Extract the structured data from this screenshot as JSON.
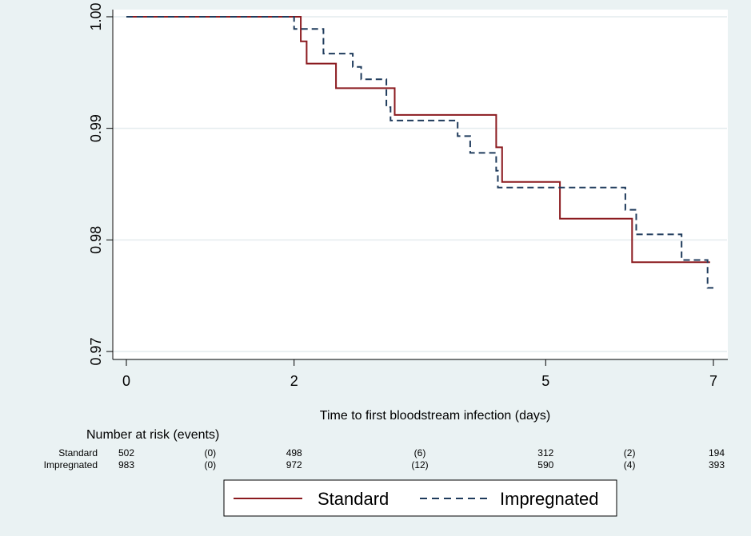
{
  "chart_data": {
    "type": "line",
    "subtype": "kaplan-meier-step",
    "xlabel": "Time to first bloodstream infection (days)",
    "ylabel": "",
    "xlim": [
      0,
      7
    ],
    "ylim": [
      0.9695,
      1.0005
    ],
    "x_ticks": [
      0,
      2,
      5,
      7
    ],
    "y_ticks": [
      0.97,
      0.98,
      0.99,
      1.0
    ],
    "y_tick_labels": [
      "0.97",
      "0.98",
      "0.99",
      "1.00"
    ],
    "grid": true,
    "legend_position": "bottom",
    "series": [
      {
        "name": "Standard",
        "color": "#8b1a1f",
        "dash": "solid",
        "points": [
          [
            0,
            1.0
          ],
          [
            2.08,
            1.0
          ],
          [
            2.08,
            0.9978
          ],
          [
            2.15,
            0.9978
          ],
          [
            2.15,
            0.9958
          ],
          [
            2.5,
            0.9958
          ],
          [
            2.5,
            0.9936
          ],
          [
            3.2,
            0.9936
          ],
          [
            3.2,
            0.9912
          ],
          [
            4.41,
            0.9912
          ],
          [
            4.41,
            0.9883
          ],
          [
            4.48,
            0.9883
          ],
          [
            4.48,
            0.9852
          ],
          [
            5.17,
            0.9852
          ],
          [
            5.17,
            0.9819
          ],
          [
            6.03,
            0.9819
          ],
          [
            6.03,
            0.978
          ],
          [
            6.96,
            0.978
          ]
        ]
      },
      {
        "name": "Impregnated",
        "color": "#1f3b5c",
        "dash": "dashed",
        "points": [
          [
            0,
            1.0
          ],
          [
            2.0,
            1.0
          ],
          [
            2.0,
            0.9989
          ],
          [
            2.35,
            0.9989
          ],
          [
            2.35,
            0.9967
          ],
          [
            2.7,
            0.9967
          ],
          [
            2.7,
            0.9955
          ],
          [
            2.8,
            0.9955
          ],
          [
            2.8,
            0.9944
          ],
          [
            3.1,
            0.9944
          ],
          [
            3.1,
            0.9919
          ],
          [
            3.15,
            0.9919
          ],
          [
            3.15,
            0.9907
          ],
          [
            3.95,
            0.9907
          ],
          [
            3.95,
            0.9893
          ],
          [
            4.1,
            0.9893
          ],
          [
            4.1,
            0.9878
          ],
          [
            4.41,
            0.9878
          ],
          [
            4.41,
            0.9862
          ],
          [
            4.43,
            0.9862
          ],
          [
            4.43,
            0.9847
          ],
          [
            5.95,
            0.9847
          ],
          [
            5.95,
            0.9827
          ],
          [
            6.08,
            0.9827
          ],
          [
            6.08,
            0.9805
          ],
          [
            6.62,
            0.9805
          ],
          [
            6.62,
            0.9782
          ],
          [
            6.93,
            0.9782
          ],
          [
            6.93,
            0.9757
          ],
          [
            7.0,
            0.9757
          ]
        ]
      }
    ]
  },
  "risk_table": {
    "title": "Number at risk (events)",
    "rows": [
      {
        "label": "Standard",
        "values": [
          "502",
          "(0)",
          "498",
          "(6)",
          "312",
          "(2)",
          "194"
        ]
      },
      {
        "label": "Impregnated",
        "values": [
          "983",
          "(0)",
          "972",
          "(12)",
          "590",
          "(4)",
          "393"
        ]
      }
    ],
    "column_x": [
      0,
      1,
      2,
      3.5,
      5,
      6,
      7
    ]
  },
  "legend": {
    "items": [
      {
        "label": "Standard",
        "color": "#8b1a1f",
        "dash": "solid"
      },
      {
        "label": "Impregnated",
        "color": "#1f3b5c",
        "dash": "dashed"
      }
    ]
  },
  "colors": {
    "background": "#eaf2f3",
    "plot_background": "#ffffff",
    "gridline": "#e4ebee",
    "axis": "#000000"
  }
}
